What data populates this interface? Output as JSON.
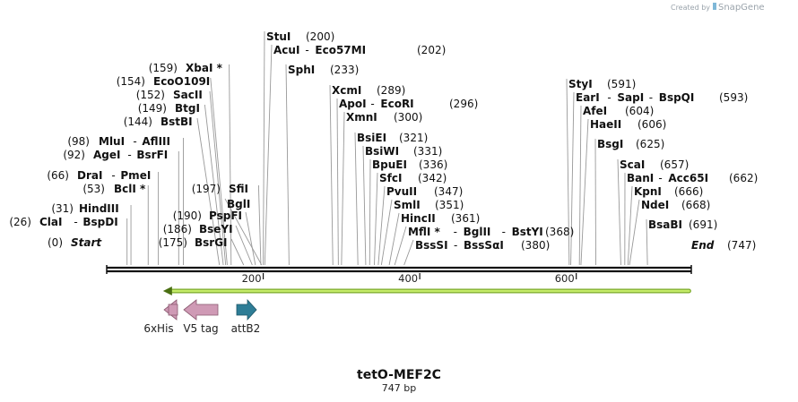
{
  "credit": {
    "prefix": "Created by",
    "brand": "SnapGene"
  },
  "map": {
    "title": "tetO-MEF2C",
    "length_label": "747 bp",
    "length": 747,
    "ticks": [
      {
        "pos": 200,
        "label": "200"
      },
      {
        "pos": 400,
        "label": "400"
      },
      {
        "pos": 600,
        "label": "600"
      }
    ],
    "left_sites": [
      {
        "pos": 0,
        "pos_label": "(0)",
        "names": [
          "Start"
        ],
        "style": "italic"
      },
      {
        "pos": 26,
        "pos_label": "(26)",
        "names": [
          "ClaI",
          "BspDI"
        ]
      },
      {
        "pos": 31,
        "pos_label": "(31)",
        "names": [
          "HindIII"
        ]
      },
      {
        "pos": 53,
        "pos_label": "(53)",
        "names": [
          "BclI *"
        ]
      },
      {
        "pos": 66,
        "pos_label": "(66)",
        "names": [
          "DraI",
          "PmeI"
        ]
      },
      {
        "pos": 92,
        "pos_label": "(92)",
        "names": [
          "AgeI",
          "BsrFI"
        ]
      },
      {
        "pos": 98,
        "pos_label": "(98)",
        "names": [
          "MluI",
          "AflIII"
        ]
      },
      {
        "pos": 144,
        "pos_label": "(144)",
        "names": [
          "BstBI"
        ]
      },
      {
        "pos": 149,
        "pos_label": "(149)",
        "names": [
          "BtgI"
        ]
      },
      {
        "pos": 152,
        "pos_label": "(152)",
        "names": [
          "SacII"
        ]
      },
      {
        "pos": 154,
        "pos_label": "(154)",
        "names": [
          "EcoO109I"
        ]
      },
      {
        "pos": 159,
        "pos_label": "(159)",
        "names": [
          "XbaI *"
        ]
      },
      {
        "pos": 175,
        "pos_label": "(175)",
        "names": [
          "BsrGI"
        ]
      },
      {
        "pos": 186,
        "pos_label": "(186)",
        "names": [
          "BseYI"
        ]
      },
      {
        "pos": 190,
        "pos_label": "(190)",
        "names": [
          "PspFI"
        ]
      },
      {
        "pos": 197,
        "pos_label": "(197)",
        "names": [
          "SfiI"
        ]
      }
    ],
    "right_sites": [
      {
        "pos": 198,
        "pos_label": "",
        "names": [
          "BglI"
        ]
      },
      {
        "pos": 200,
        "pos_label": "(200)",
        "names": [
          "StuI"
        ]
      },
      {
        "pos": 202,
        "pos_label": "(202)",
        "names": [
          "AcuI",
          "Eco57MI"
        ]
      },
      {
        "pos": 233,
        "pos_label": "(233)",
        "names": [
          "SphI"
        ]
      },
      {
        "pos": 289,
        "pos_label": "(289)",
        "names": [
          "XcmI"
        ]
      },
      {
        "pos": 296,
        "pos_label": "(296)",
        "names": [
          "ApoI",
          "EcoRI"
        ]
      },
      {
        "pos": 300,
        "pos_label": "(300)",
        "names": [
          "XmnI"
        ]
      },
      {
        "pos": 321,
        "pos_label": "(321)",
        "names": [
          "BsiEI"
        ]
      },
      {
        "pos": 331,
        "pos_label": "(331)",
        "names": [
          "BsiWI"
        ]
      },
      {
        "pos": 336,
        "pos_label": "(336)",
        "names": [
          "BpuEI"
        ]
      },
      {
        "pos": 342,
        "pos_label": "(342)",
        "names": [
          "SfcI"
        ]
      },
      {
        "pos": 347,
        "pos_label": "(347)",
        "names": [
          "PvuII"
        ]
      },
      {
        "pos": 351,
        "pos_label": "(351)",
        "names": [
          "SmlI"
        ]
      },
      {
        "pos": 361,
        "pos_label": "(361)",
        "names": [
          "HincII"
        ]
      },
      {
        "pos": 368,
        "pos_label": "(368)",
        "names": [
          "MflI *",
          "BglII",
          "BstYI"
        ]
      },
      {
        "pos": 380,
        "pos_label": "(380)",
        "names": [
          "BssSI",
          "BssSαI"
        ]
      },
      {
        "pos": 591,
        "pos_label": "(591)",
        "names": [
          "StyI"
        ]
      },
      {
        "pos": 593,
        "pos_label": "(593)",
        "names": [
          "EarI",
          "SapI",
          "BspQI"
        ]
      },
      {
        "pos": 604,
        "pos_label": "(604)",
        "names": [
          "AfeI"
        ]
      },
      {
        "pos": 606,
        "pos_label": "(606)",
        "names": [
          "HaeII"
        ]
      },
      {
        "pos": 625,
        "pos_label": "(625)",
        "names": [
          "BsgI"
        ]
      },
      {
        "pos": 657,
        "pos_label": "(657)",
        "names": [
          "ScaI"
        ]
      },
      {
        "pos": 662,
        "pos_label": "(662)",
        "names": [
          "BanI",
          "Acc65I"
        ]
      },
      {
        "pos": 666,
        "pos_label": "(666)",
        "names": [
          "KpnI"
        ]
      },
      {
        "pos": 668,
        "pos_label": "(668)",
        "names": [
          "NdeI"
        ]
      },
      {
        "pos": 691,
        "pos_label": "(691)",
        "names": [
          "BsaBI"
        ]
      },
      {
        "pos": 747,
        "pos_label": "(747)",
        "names": [
          "End"
        ],
        "style": "italic"
      }
    ],
    "orf": {
      "start": 72,
      "end": 744,
      "direction": "reverse",
      "color": "#b8e04a"
    },
    "features": [
      {
        "label": "6xHis",
        "direction": "left",
        "color": "#cf9ab5"
      },
      {
        "label": "V5 tag",
        "direction": "left",
        "color": "#cf9ab5"
      },
      {
        "label": "attB2",
        "direction": "right",
        "color": "#2e7d96"
      }
    ]
  }
}
